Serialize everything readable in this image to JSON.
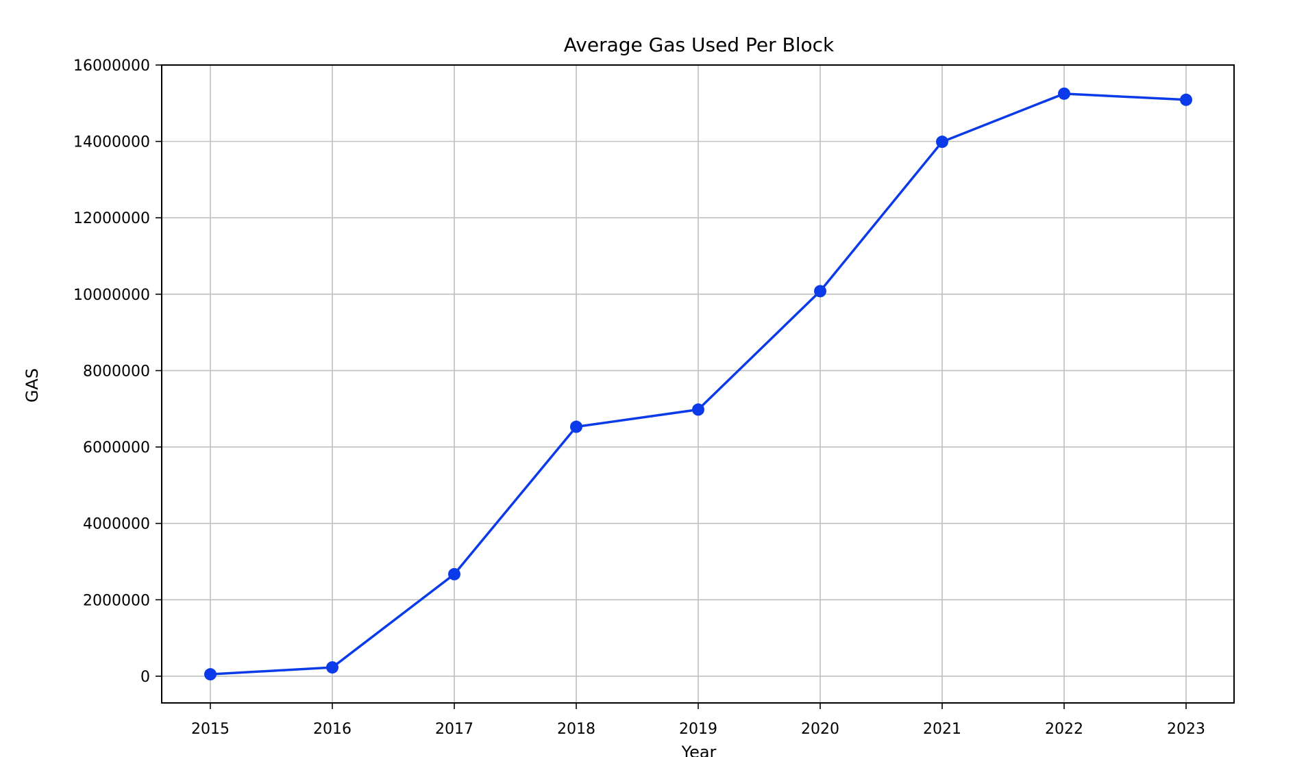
{
  "chart_data": {
    "type": "line",
    "title": "Average Gas Used Per Block",
    "xlabel": "Year",
    "ylabel": "GAS",
    "x": [
      "2015",
      "2016",
      "2017",
      "2018",
      "2019",
      "2020",
      "2021",
      "2022",
      "2023"
    ],
    "series": [
      {
        "values": [
          50000,
          230000,
          2670000,
          6530000,
          6980000,
          10080000,
          13990000,
          15250000,
          15090000
        ]
      }
    ],
    "yticks": [
      0,
      2000000,
      4000000,
      6000000,
      8000000,
      10000000,
      12000000,
      14000000,
      16000000
    ],
    "ytick_labels": [
      "0",
      "2000000",
      "4000000",
      "6000000",
      "8000000",
      "10000000",
      "12000000",
      "14000000",
      "16000000"
    ],
    "ylim": [
      -700000,
      16000000
    ],
    "grid": true,
    "legend": false,
    "colors": {
      "line": "#0b3be8",
      "marker": "#0b3be8",
      "grid": "#c0c0c0",
      "axis": "#000000"
    }
  }
}
